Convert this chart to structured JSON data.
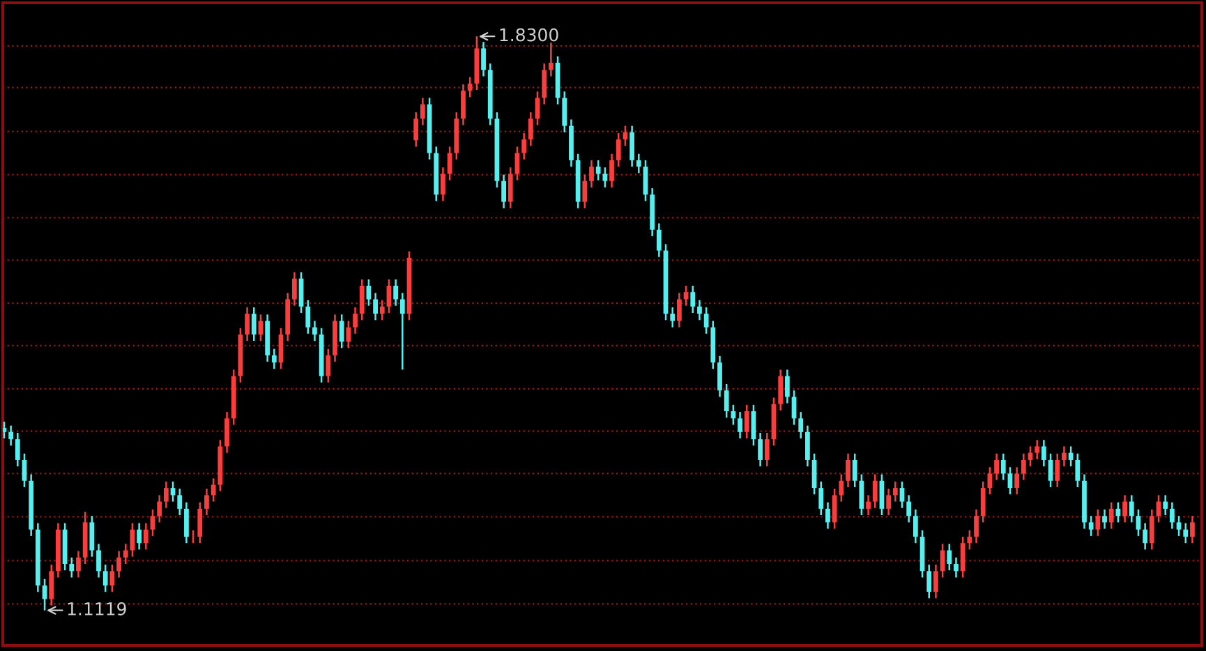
{
  "chart_data": {
    "type": "candlestick",
    "categories": [
      null,
      null,
      null,
      null,
      null,
      null,
      null,
      null,
      null,
      null,
      null,
      null,
      null,
      null,
      null,
      null,
      null,
      null,
      null,
      null,
      null,
      null,
      null,
      null,
      null,
      null,
      null,
      null,
      null,
      null,
      null,
      null,
      null,
      null,
      null,
      null,
      null,
      null,
      null,
      null,
      null,
      null,
      null,
      null,
      null,
      null,
      null,
      null,
      null,
      null,
      null,
      null,
      null,
      null,
      null,
      null,
      null,
      null,
      null,
      null,
      null,
      null,
      null,
      null,
      null,
      null,
      null,
      null,
      null,
      null,
      null,
      null,
      null,
      null,
      null,
      null,
      null,
      null,
      null,
      null,
      null,
      null,
      null,
      null,
      null,
      null,
      null,
      null,
      null,
      null,
      null,
      null,
      null,
      null,
      null,
      null,
      null,
      null,
      null,
      null,
      null,
      null,
      null,
      null,
      null,
      null,
      null,
      null,
      null,
      null,
      null,
      null,
      null,
      null,
      null,
      null,
      null,
      null,
      null,
      null,
      null,
      null,
      null,
      null,
      null,
      null,
      null,
      null,
      null,
      null,
      null,
      null,
      null,
      null,
      null,
      null,
      null,
      null,
      null,
      null,
      null,
      null,
      null,
      null,
      null,
      null,
      null,
      null,
      null,
      null,
      null,
      null,
      null,
      null,
      null,
      null,
      null,
      null,
      null,
      null,
      null,
      null,
      null,
      null,
      null,
      null,
      null,
      null,
      null,
      null,
      null,
      null,
      null,
      null,
      null,
      null,
      null
    ],
    "ohlc": [
      [
        1.34,
        1.348,
        1.327,
        1.335
      ],
      [
        1.335,
        1.343,
        1.318,
        1.326
      ],
      [
        1.326,
        1.334,
        1.292,
        1.3
      ],
      [
        1.3,
        1.308,
        1.266,
        1.274
      ],
      [
        1.274,
        1.282,
        1.205,
        1.213
      ],
      [
        1.213,
        1.221,
        1.135,
        1.143
      ],
      [
        1.143,
        1.151,
        1.1119,
        1.126
      ],
      [
        1.126,
        1.169,
        1.118,
        1.161
      ],
      [
        1.161,
        1.221,
        1.153,
        1.213
      ],
      [
        1.213,
        1.221,
        1.162,
        1.17
      ],
      [
        1.17,
        1.178,
        1.153,
        1.161
      ],
      [
        1.161,
        1.186,
        1.153,
        1.178
      ],
      [
        1.178,
        1.235,
        1.17,
        1.222
      ],
      [
        1.222,
        1.23,
        1.179,
        1.187
      ],
      [
        1.187,
        1.195,
        1.153,
        1.161
      ],
      [
        1.161,
        1.169,
        1.135,
        1.143
      ],
      [
        1.143,
        1.169,
        1.135,
        1.161
      ],
      [
        1.161,
        1.186,
        1.153,
        1.178
      ],
      [
        1.178,
        1.195,
        1.17,
        1.187
      ],
      [
        1.187,
        1.221,
        1.179,
        1.213
      ],
      [
        1.213,
        1.221,
        1.188,
        1.196
      ],
      [
        1.196,
        1.221,
        1.188,
        1.213
      ],
      [
        1.213,
        1.238,
        1.205,
        1.23
      ],
      [
        1.23,
        1.256,
        1.222,
        1.248
      ],
      [
        1.248,
        1.273,
        1.24,
        1.265
      ],
      [
        1.265,
        1.273,
        1.248,
        1.256
      ],
      [
        1.256,
        1.264,
        1.231,
        1.239
      ],
      [
        1.239,
        1.247,
        1.196,
        1.204
      ],
      [
        1.204,
        1.212,
        1.196,
        1.204
      ],
      [
        1.204,
        1.247,
        1.196,
        1.239
      ],
      [
        1.239,
        1.264,
        1.231,
        1.256
      ],
      [
        1.256,
        1.277,
        1.248,
        1.269
      ],
      [
        1.269,
        1.325,
        1.261,
        1.317
      ],
      [
        1.317,
        1.36,
        1.309,
        1.352
      ],
      [
        1.352,
        1.413,
        1.344,
        1.405
      ],
      [
        1.405,
        1.465,
        1.397,
        1.457
      ],
      [
        1.457,
        1.491,
        1.449,
        1.483
      ],
      [
        1.483,
        1.491,
        1.449,
        1.457
      ],
      [
        1.457,
        1.482,
        1.449,
        1.474
      ],
      [
        1.474,
        1.482,
        1.423,
        1.431
      ],
      [
        1.431,
        1.439,
        1.414,
        1.422
      ],
      [
        1.422,
        1.465,
        1.414,
        1.457
      ],
      [
        1.457,
        1.509,
        1.449,
        1.501
      ],
      [
        1.501,
        1.535,
        1.493,
        1.527
      ],
      [
        1.527,
        1.535,
        1.484,
        1.492
      ],
      [
        1.492,
        1.5,
        1.458,
        1.466
      ],
      [
        1.466,
        1.474,
        1.449,
        1.457
      ],
      [
        1.457,
        1.465,
        1.397,
        1.405
      ],
      [
        1.405,
        1.439,
        1.397,
        1.431
      ],
      [
        1.431,
        1.482,
        1.423,
        1.474
      ],
      [
        1.474,
        1.482,
        1.44,
        1.448
      ],
      [
        1.448,
        1.474,
        1.44,
        1.466
      ],
      [
        1.466,
        1.491,
        1.458,
        1.483
      ],
      [
        1.483,
        1.526,
        1.475,
        1.518
      ],
      [
        1.518,
        1.526,
        1.493,
        1.501
      ],
      [
        1.501,
        1.509,
        1.475,
        1.483
      ],
      [
        1.483,
        1.5,
        1.475,
        1.492
      ],
      [
        1.492,
        1.526,
        1.484,
        1.518
      ],
      [
        1.518,
        1.526,
        1.493,
        1.501
      ],
      [
        1.501,
        1.509,
        1.413,
        1.483
      ],
      [
        1.483,
        1.561,
        1.475,
        1.553
      ],
      [
        1.7,
        1.735,
        1.692,
        1.727
      ],
      [
        1.727,
        1.753,
        1.719,
        1.745
      ],
      [
        1.745,
        1.753,
        1.676,
        1.684
      ],
      [
        1.684,
        1.692,
        1.624,
        1.632
      ],
      [
        1.632,
        1.666,
        1.624,
        1.658
      ],
      [
        1.658,
        1.692,
        1.65,
        1.684
      ],
      [
        1.684,
        1.735,
        1.676,
        1.727
      ],
      [
        1.727,
        1.77,
        1.719,
        1.762
      ],
      [
        1.762,
        1.779,
        1.754,
        1.771
      ],
      [
        1.771,
        1.83,
        1.763,
        1.815
      ],
      [
        1.815,
        1.823,
        1.78,
        1.788
      ],
      [
        1.788,
        1.796,
        1.719,
        1.727
      ],
      [
        1.727,
        1.735,
        1.641,
        1.649
      ],
      [
        1.649,
        1.657,
        1.615,
        1.623
      ],
      [
        1.623,
        1.666,
        1.615,
        1.658
      ],
      [
        1.658,
        1.692,
        1.65,
        1.684
      ],
      [
        1.684,
        1.709,
        1.676,
        1.701
      ],
      [
        1.701,
        1.735,
        1.693,
        1.727
      ],
      [
        1.727,
        1.761,
        1.719,
        1.753
      ],
      [
        1.753,
        1.796,
        1.745,
        1.788
      ],
      [
        1.788,
        1.822,
        1.78,
        1.797
      ],
      [
        1.797,
        1.805,
        1.745,
        1.753
      ],
      [
        1.753,
        1.761,
        1.71,
        1.718
      ],
      [
        1.718,
        1.726,
        1.667,
        1.675
      ],
      [
        1.675,
        1.683,
        1.615,
        1.623
      ],
      [
        1.623,
        1.657,
        1.615,
        1.649
      ],
      [
        1.649,
        1.675,
        1.641,
        1.667
      ],
      [
        1.667,
        1.675,
        1.65,
        1.658
      ],
      [
        1.658,
        1.666,
        1.641,
        1.649
      ],
      [
        1.649,
        1.683,
        1.641,
        1.675
      ],
      [
        1.675,
        1.709,
        1.667,
        1.701
      ],
      [
        1.701,
        1.718,
        1.693,
        1.71
      ],
      [
        1.71,
        1.718,
        1.667,
        1.675
      ],
      [
        1.675,
        1.683,
        1.659,
        1.667
      ],
      [
        1.667,
        1.675,
        1.624,
        1.632
      ],
      [
        1.632,
        1.64,
        1.58,
        1.588
      ],
      [
        1.588,
        1.596,
        1.554,
        1.562
      ],
      [
        1.562,
        1.57,
        1.475,
        1.483
      ],
      [
        1.483,
        1.491,
        1.466,
        1.474
      ],
      [
        1.474,
        1.509,
        1.466,
        1.501
      ],
      [
        1.501,
        1.518,
        1.493,
        1.51
      ],
      [
        1.51,
        1.518,
        1.484,
        1.492
      ],
      [
        1.492,
        1.5,
        1.475,
        1.483
      ],
      [
        1.483,
        1.491,
        1.458,
        1.466
      ],
      [
        1.466,
        1.474,
        1.414,
        1.422
      ],
      [
        1.422,
        1.43,
        1.379,
        1.387
      ],
      [
        1.387,
        1.395,
        1.353,
        1.361
      ],
      [
        1.361,
        1.369,
        1.344,
        1.352
      ],
      [
        1.352,
        1.36,
        1.327,
        1.335
      ],
      [
        1.335,
        1.369,
        1.327,
        1.361
      ],
      [
        1.361,
        1.369,
        1.318,
        1.326
      ],
      [
        1.326,
        1.334,
        1.292,
        1.3
      ],
      [
        1.3,
        1.334,
        1.292,
        1.326
      ],
      [
        1.326,
        1.378,
        1.318,
        1.37
      ],
      [
        1.37,
        1.413,
        1.362,
        1.405
      ],
      [
        1.405,
        1.413,
        1.371,
        1.379
      ],
      [
        1.379,
        1.387,
        1.344,
        1.352
      ],
      [
        1.352,
        1.36,
        1.327,
        1.335
      ],
      [
        1.335,
        1.343,
        1.292,
        1.3
      ],
      [
        1.3,
        1.308,
        1.257,
        1.265
      ],
      [
        1.265,
        1.273,
        1.231,
        1.239
      ],
      [
        1.239,
        1.247,
        1.214,
        1.222
      ],
      [
        1.222,
        1.264,
        1.214,
        1.256
      ],
      [
        1.256,
        1.282,
        1.248,
        1.274
      ],
      [
        1.274,
        1.308,
        1.266,
        1.3
      ],
      [
        1.3,
        1.308,
        1.266,
        1.274
      ],
      [
        1.274,
        1.282,
        1.231,
        1.239
      ],
      [
        1.239,
        1.256,
        1.231,
        1.248
      ],
      [
        1.248,
        1.282,
        1.24,
        1.274
      ],
      [
        1.274,
        1.282,
        1.231,
        1.239
      ],
      [
        1.239,
        1.264,
        1.231,
        1.256
      ],
      [
        1.256,
        1.273,
        1.248,
        1.265
      ],
      [
        1.265,
        1.273,
        1.24,
        1.248
      ],
      [
        1.248,
        1.256,
        1.222,
        1.23
      ],
      [
        1.23,
        1.238,
        1.196,
        1.204
      ],
      [
        1.204,
        1.212,
        1.153,
        1.161
      ],
      [
        1.161,
        1.169,
        1.127,
        1.135
      ],
      [
        1.135,
        1.169,
        1.127,
        1.161
      ],
      [
        1.161,
        1.195,
        1.153,
        1.187
      ],
      [
        1.187,
        1.195,
        1.162,
        1.17
      ],
      [
        1.17,
        1.178,
        1.153,
        1.161
      ],
      [
        1.161,
        1.204,
        1.153,
        1.196
      ],
      [
        1.196,
        1.212,
        1.188,
        1.204
      ],
      [
        1.204,
        1.238,
        1.196,
        1.23
      ],
      [
        1.23,
        1.273,
        1.222,
        1.265
      ],
      [
        1.265,
        1.291,
        1.257,
        1.283
      ],
      [
        1.283,
        1.308,
        1.275,
        1.3
      ],
      [
        1.3,
        1.308,
        1.275,
        1.283
      ],
      [
        1.283,
        1.291,
        1.257,
        1.265
      ],
      [
        1.265,
        1.291,
        1.257,
        1.283
      ],
      [
        1.283,
        1.308,
        1.275,
        1.3
      ],
      [
        1.3,
        1.317,
        1.292,
        1.309
      ],
      [
        1.309,
        1.325,
        1.301,
        1.317
      ],
      [
        1.317,
        1.325,
        1.292,
        1.3
      ],
      [
        1.3,
        1.308,
        1.266,
        1.274
      ],
      [
        1.274,
        1.308,
        1.266,
        1.3
      ],
      [
        1.3,
        1.317,
        1.292,
        1.309
      ],
      [
        1.309,
        1.317,
        1.292,
        1.3
      ],
      [
        1.3,
        1.308,
        1.266,
        1.274
      ],
      [
        1.274,
        1.282,
        1.214,
        1.222
      ],
      [
        1.222,
        1.23,
        1.205,
        1.213
      ],
      [
        1.213,
        1.238,
        1.205,
        1.23
      ],
      [
        1.23,
        1.238,
        1.214,
        1.222
      ],
      [
        1.222,
        1.247,
        1.214,
        1.239
      ],
      [
        1.239,
        1.247,
        1.222,
        1.23
      ],
      [
        1.23,
        1.256,
        1.222,
        1.248
      ],
      [
        1.248,
        1.256,
        1.222,
        1.23
      ],
      [
        1.23,
        1.238,
        1.205,
        1.213
      ],
      [
        1.213,
        1.221,
        1.188,
        1.196
      ],
      [
        1.196,
        1.238,
        1.188,
        1.23
      ],
      [
        1.23,
        1.256,
        1.222,
        1.248
      ],
      [
        1.248,
        1.256,
        1.231,
        1.239
      ],
      [
        1.239,
        1.247,
        1.214,
        1.222
      ],
      [
        1.222,
        1.23,
        1.205,
        1.213
      ],
      [
        1.213,
        1.221,
        1.196,
        1.204
      ],
      [
        1.204,
        1.23,
        1.196,
        1.222
      ]
    ],
    "colors": [
      "#54f0f0",
      "#54f0f0",
      "#54f0f0",
      "#54f0f0",
      "#54f0f0",
      "#54f0f0",
      "#54f0f0",
      "#ff3c3c",
      "#ff3c3c",
      "#54f0f0",
      "#54f0f0",
      "#ff3c3c",
      "#ff3c3c",
      "#54f0f0",
      "#54f0f0",
      "#54f0f0",
      "#ff3c3c",
      "#ff3c3c",
      "#ff3c3c",
      "#ff3c3c",
      "#54f0f0",
      "#ff3c3c",
      "#ff3c3c",
      "#ff3c3c",
      "#ff3c3c",
      "#54f0f0",
      "#54f0f0",
      "#54f0f0",
      "#ff3c3c",
      "#ff3c3c",
      "#ff3c3c",
      "#ff3c3c",
      "#ff3c3c",
      "#ff3c3c",
      "#ff3c3c",
      "#ff3c3c",
      "#ff3c3c",
      "#54f0f0",
      "#ff3c3c",
      "#54f0f0",
      "#54f0f0",
      "#ff3c3c",
      "#ff3c3c",
      "#ff3c3c",
      "#54f0f0",
      "#54f0f0",
      "#54f0f0",
      "#54f0f0",
      "#ff3c3c",
      "#ff3c3c",
      "#54f0f0",
      "#ff3c3c",
      "#ff3c3c",
      "#ff3c3c",
      "#54f0f0",
      "#54f0f0",
      "#ff3c3c",
      "#ff3c3c",
      "#54f0f0",
      "#54f0f0",
      "#ff3c3c",
      "#ff3c3c",
      "#ff3c3c",
      "#54f0f0",
      "#54f0f0",
      "#ff3c3c",
      "#ff3c3c",
      "#ff3c3c",
      "#ff3c3c",
      "#ff3c3c",
      "#ff3c3c",
      "#54f0f0",
      "#54f0f0",
      "#54f0f0",
      "#54f0f0",
      "#ff3c3c",
      "#ff3c3c",
      "#ff3c3c",
      "#ff3c3c",
      "#ff3c3c",
      "#ff3c3c",
      "#ff3c3c",
      "#54f0f0",
      "#54f0f0",
      "#54f0f0",
      "#54f0f0",
      "#ff3c3c",
      "#ff3c3c",
      "#54f0f0",
      "#54f0f0",
      "#ff3c3c",
      "#ff3c3c",
      "#ff3c3c",
      "#54f0f0",
      "#54f0f0",
      "#54f0f0",
      "#54f0f0",
      "#54f0f0",
      "#54f0f0",
      "#54f0f0",
      "#ff3c3c",
      "#ff3c3c",
      "#54f0f0",
      "#54f0f0",
      "#54f0f0",
      "#54f0f0",
      "#54f0f0",
      "#54f0f0",
      "#54f0f0",
      "#54f0f0",
      "#ff3c3c",
      "#54f0f0",
      "#54f0f0",
      "#ff3c3c",
      "#ff3c3c",
      "#ff3c3c",
      "#54f0f0",
      "#54f0f0",
      "#54f0f0",
      "#54f0f0",
      "#54f0f0",
      "#54f0f0",
      "#54f0f0",
      "#ff3c3c",
      "#ff3c3c",
      "#ff3c3c",
      "#54f0f0",
      "#54f0f0",
      "#ff3c3c",
      "#ff3c3c",
      "#54f0f0",
      "#ff3c3c",
      "#ff3c3c",
      "#54f0f0",
      "#54f0f0",
      "#54f0f0",
      "#54f0f0",
      "#54f0f0",
      "#ff3c3c",
      "#ff3c3c",
      "#54f0f0",
      "#54f0f0",
      "#ff3c3c",
      "#ff3c3c",
      "#ff3c3c",
      "#ff3c3c",
      "#ff3c3c",
      "#ff3c3c",
      "#54f0f0",
      "#54f0f0",
      "#ff3c3c",
      "#ff3c3c",
      "#ff3c3c",
      "#ff3c3c",
      "#54f0f0",
      "#54f0f0",
      "#ff3c3c",
      "#ff3c3c",
      "#54f0f0",
      "#54f0f0",
      "#54f0f0",
      "#54f0f0",
      "#ff3c3c",
      "#54f0f0",
      "#ff3c3c",
      "#54f0f0",
      "#ff3c3c",
      "#54f0f0",
      "#54f0f0",
      "#54f0f0",
      "#ff3c3c",
      "#ff3c3c",
      "#54f0f0",
      "#54f0f0",
      "#54f0f0",
      "#54f0f0",
      "#ff3c3c"
    ],
    "ylim": [
      1.068,
      1.872
    ],
    "yticks": [
      {
        "value": 1.12,
        "label": null
      },
      {
        "value": 1.174,
        "label": null
      },
      {
        "value": 1.229,
        "label": null
      },
      {
        "value": 1.283,
        "label": null
      },
      {
        "value": 1.336,
        "label": null
      },
      {
        "value": 1.389,
        "label": null
      },
      {
        "value": 1.443,
        "label": null
      },
      {
        "value": 1.496,
        "label": null
      },
      {
        "value": 1.55,
        "label": null
      },
      {
        "value": 1.603,
        "label": null
      },
      {
        "value": 1.657,
        "label": null
      },
      {
        "value": 1.711,
        "label": null
      },
      {
        "value": 1.766,
        "label": null
      },
      {
        "value": 1.818,
        "label": null
      }
    ],
    "grid": "y",
    "annotations": [
      "1.8300",
      "1.1119"
    ]
  }
}
